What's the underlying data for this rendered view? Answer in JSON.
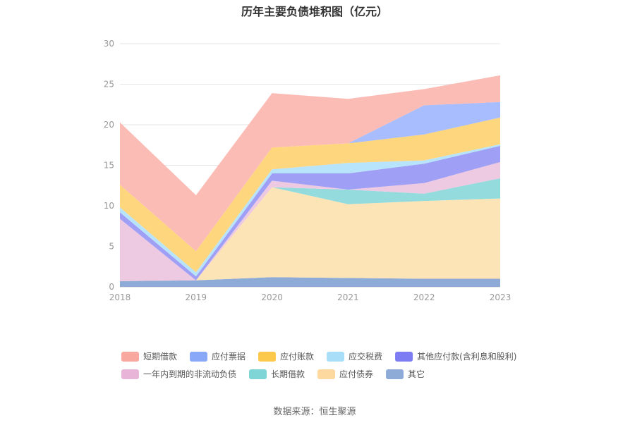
{
  "chart_data": {
    "type": "area",
    "stacked": true,
    "title": "历年主要负债堆积图（亿元）",
    "xlabel": "",
    "ylabel": "",
    "categories": [
      "2018",
      "2019",
      "2020",
      "2021",
      "2022",
      "2023"
    ],
    "ylim": [
      0,
      30
    ],
    "yticks": [
      "0",
      "5",
      "10",
      "15",
      "20",
      "25",
      "30"
    ],
    "grid": true,
    "legend_position": "bottom",
    "series": [
      {
        "name": "其它",
        "color": "#8eaad6",
        "values": [
          0.7,
          0.8,
          1.2,
          1.1,
          1.0,
          1.0
        ]
      },
      {
        "name": "应付债券",
        "color": "#fde4b6",
        "values": [
          0,
          0,
          11.1,
          9.1,
          9.6,
          9.9
        ]
      },
      {
        "name": "长期借款",
        "color": "#93dbdd",
        "values": [
          0,
          0,
          0,
          1.8,
          0.9,
          2.5
        ]
      },
      {
        "name": "一年内到期的非流动负债",
        "color": "#eec9e2",
        "values": [
          7.7,
          0,
          0.8,
          0,
          1.3,
          2.0
        ]
      },
      {
        "name": "其他应付款(含利息和股利)",
        "color": "#9f9ff5",
        "values": [
          0.8,
          0.5,
          0.9,
          2.0,
          2.4,
          2.0
        ]
      },
      {
        "name": "应交税费",
        "color": "#b8e4fb",
        "values": [
          0.6,
          0.5,
          0.5,
          1.3,
          0.4,
          0.2
        ]
      },
      {
        "name": "应付账款",
        "color": "#fed67d",
        "values": [
          2.8,
          2.6,
          2.7,
          2.4,
          3.2,
          3.3
        ]
      },
      {
        "name": "应付票据",
        "color": "#a7bdfd",
        "values": [
          0,
          0,
          0,
          0,
          3.6,
          1.9
        ]
      },
      {
        "name": "短期借款",
        "color": "#fcbcb6",
        "values": [
          7.7,
          6.9,
          6.7,
          5.5,
          2.0,
          3.3
        ]
      }
    ]
  },
  "legend": [
    {
      "name": "短期借款",
      "color": "#f9a8a0"
    },
    {
      "name": "应付票据",
      "color": "#8aa8f8"
    },
    {
      "name": "应付账款",
      "color": "#fcc94d"
    },
    {
      "name": "应交税费",
      "color": "#a9def9"
    },
    {
      "name": "其他应付款(含利息和股利)",
      "color": "#7d7cf2"
    },
    {
      "name": "一年内到期的非流动负债",
      "color": "#e8b5d8"
    },
    {
      "name": "长期借款",
      "color": "#7fd4d6"
    },
    {
      "name": "应付债券",
      "color": "#fdd9a0"
    },
    {
      "name": "其它",
      "color": "#8eaad6"
    }
  ],
  "source": "数据来源：恒生聚源"
}
